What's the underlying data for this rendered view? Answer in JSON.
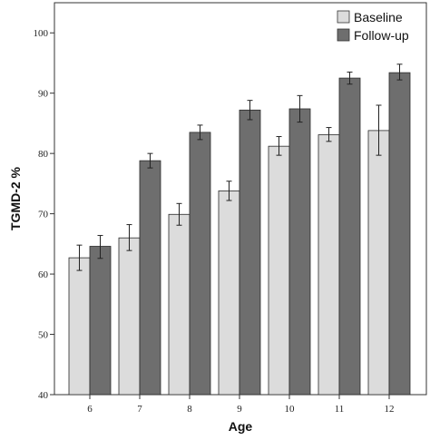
{
  "chart_data": {
    "type": "bar",
    "title": "",
    "xlabel": "Age",
    "ylabel": "TGMD-2 %",
    "categories": [
      "6",
      "7",
      "8",
      "9",
      "10",
      "11",
      "12"
    ],
    "ylim": [
      40,
      105
    ],
    "yticks": [
      40,
      50,
      60,
      70,
      80,
      90,
      100
    ],
    "grid": false,
    "legend": "top-right",
    "series": [
      {
        "name": "Baseline",
        "color": "#dcdcdc",
        "values": [
          62.7,
          66.0,
          69.9,
          73.8,
          81.2,
          83.1,
          83.8
        ],
        "error_low": [
          60.6,
          63.9,
          68.1,
          72.2,
          79.7,
          82.0,
          79.7
        ],
        "error_high": [
          64.8,
          68.2,
          71.7,
          75.4,
          82.8,
          84.3,
          88.0
        ]
      },
      {
        "name": "Follow-up",
        "color": "#6e6e6e",
        "values": [
          64.6,
          78.8,
          83.5,
          87.2,
          87.4,
          92.5,
          93.4
        ],
        "error_low": [
          62.6,
          77.6,
          82.3,
          85.6,
          85.2,
          91.5,
          92.2
        ],
        "error_high": [
          66.4,
          80.0,
          84.7,
          88.8,
          89.6,
          93.5,
          94.8
        ]
      }
    ]
  }
}
